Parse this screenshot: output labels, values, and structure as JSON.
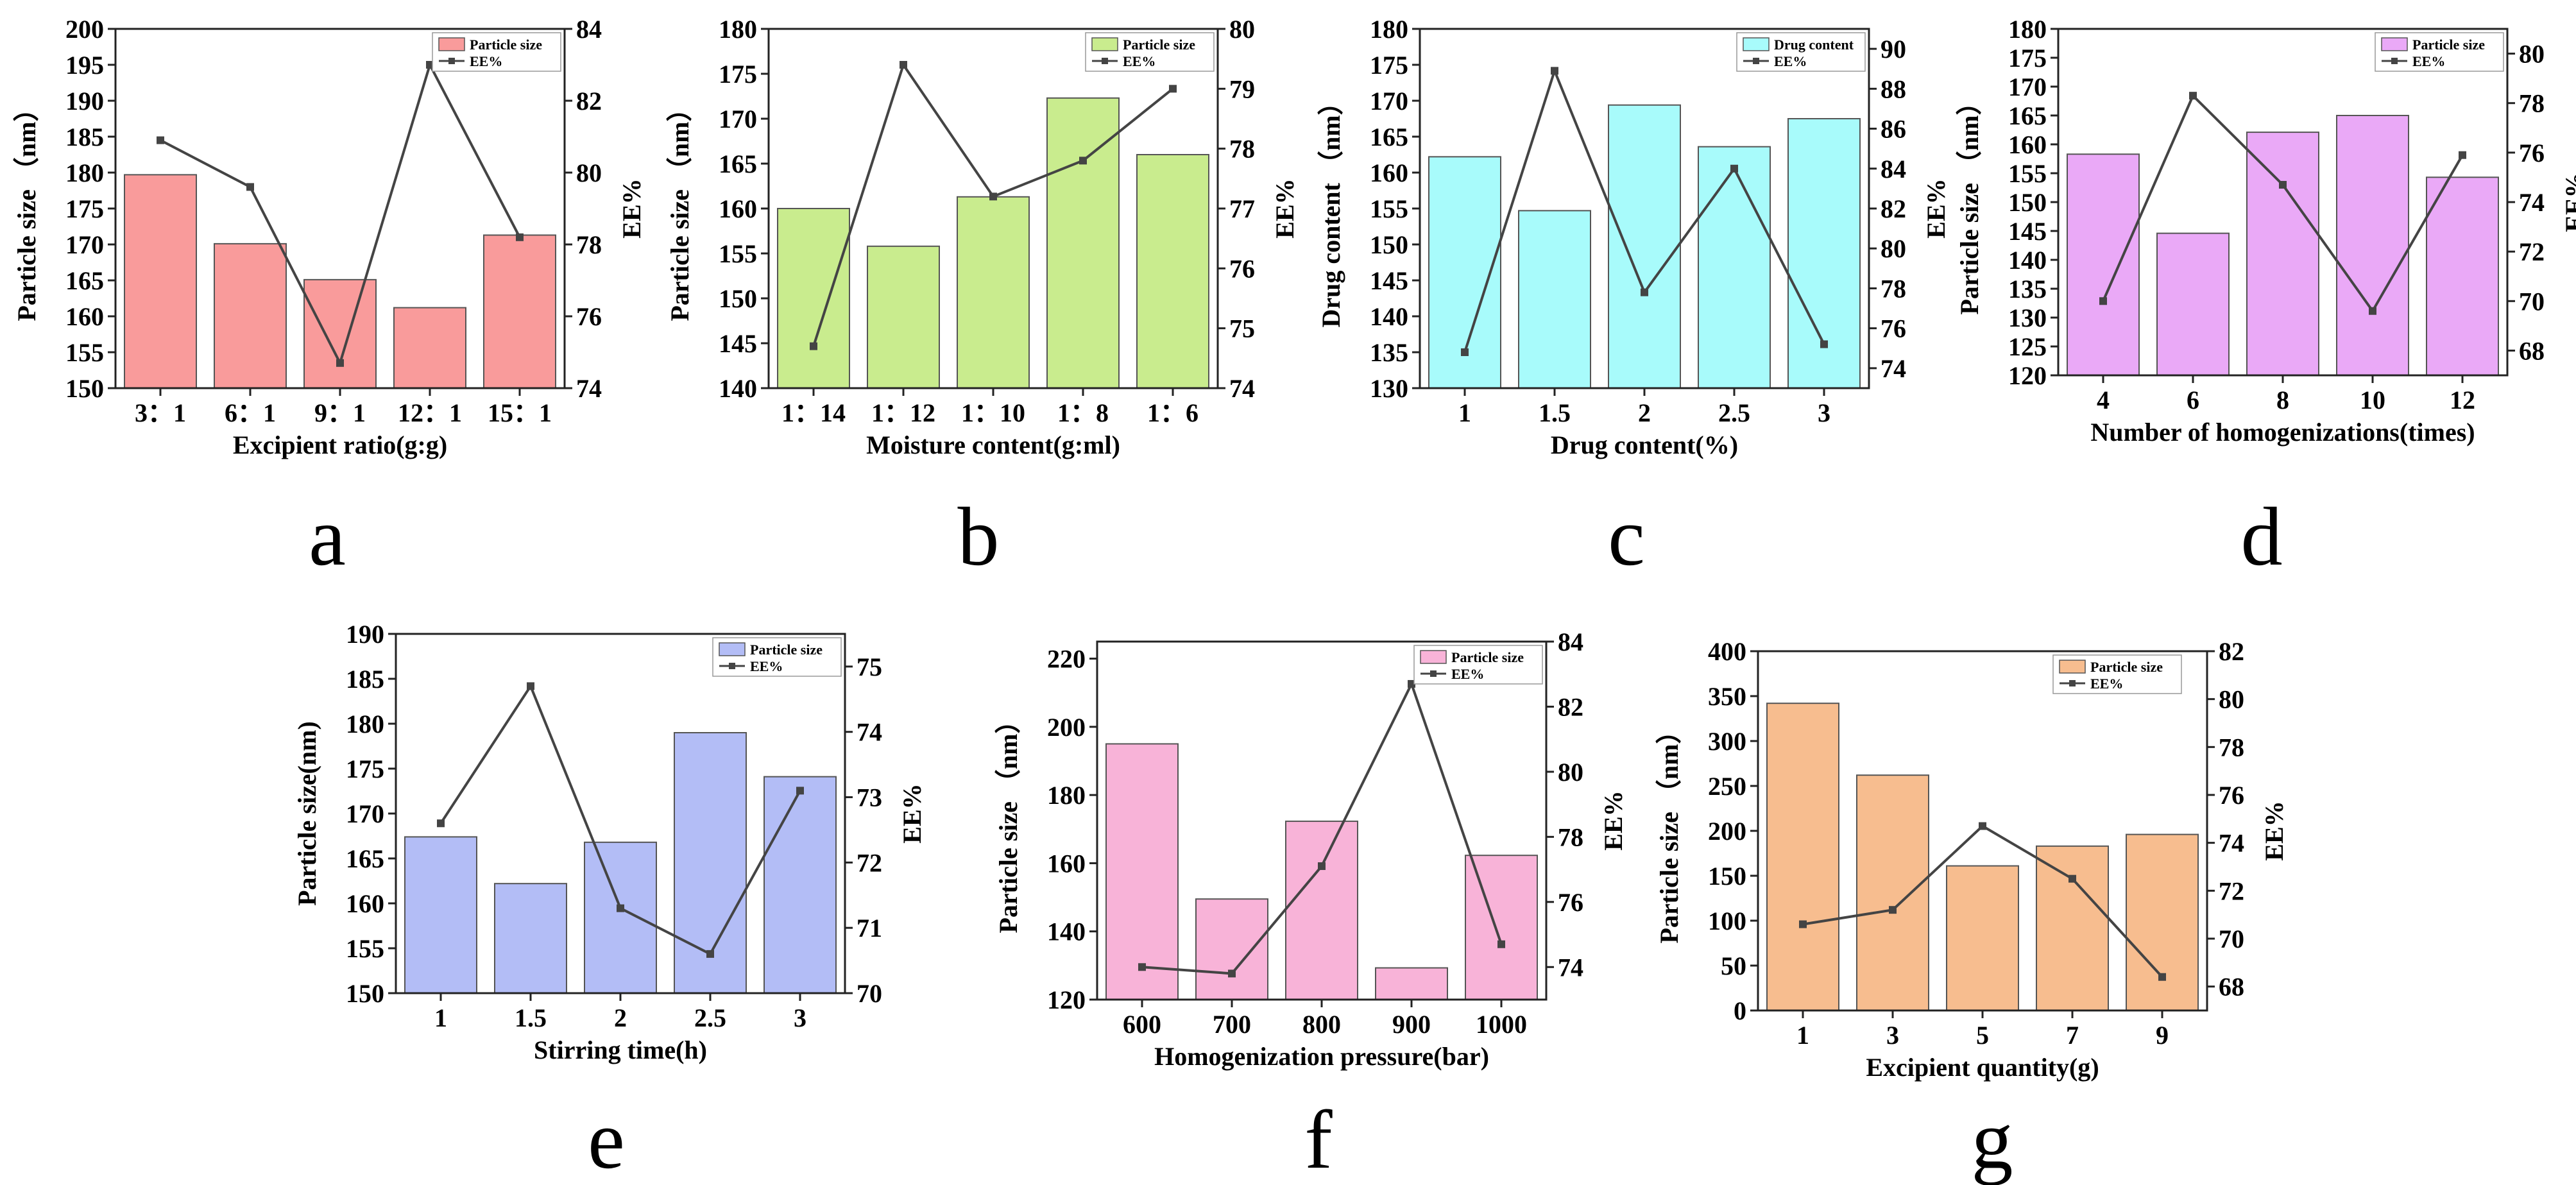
{
  "chart_data": [
    {
      "type": "bar",
      "panel": "a",
      "categories": [
        "3：1",
        "6：1",
        "9：1",
        "12：1",
        "15：1"
      ],
      "series": [
        {
          "name": "Particle size",
          "axis": "left",
          "values": [
            179.7,
            170.1,
            165.1,
            161.2,
            171.3
          ]
        },
        {
          "name": "EE%",
          "axis": "right",
          "type": "line",
          "values": [
            80.9,
            79.6,
            74.7,
            83.0,
            78.2
          ]
        }
      ],
      "xlabel": "Excipient ratio(g:g)",
      "ylabel": "Particle size （nm）",
      "y2label": "EE%",
      "ylim": [
        150,
        200
      ],
      "yticks": [
        150,
        155,
        160,
        165,
        170,
        175,
        180,
        185,
        190,
        195,
        200
      ],
      "y2lim": [
        74,
        84
      ],
      "y2ticks": [
        74,
        76,
        78,
        80,
        82,
        84
      ],
      "bar_color": "#f99b9b",
      "legend": "top-right"
    },
    {
      "type": "bar",
      "panel": "b",
      "categories": [
        "1：14",
        "1：12",
        "1：10",
        "1：8",
        "1：6"
      ],
      "series": [
        {
          "name": "Particle size",
          "axis": "left",
          "values": [
            160.0,
            155.8,
            161.3,
            172.3,
            166.0
          ]
        },
        {
          "name": "EE%",
          "axis": "right",
          "type": "line",
          "values": [
            74.7,
            79.4,
            77.2,
            77.8,
            79.0
          ]
        }
      ],
      "xlabel": "Moisture content(g:ml)",
      "ylabel": "Particle size （nm）",
      "y2label": "EE%",
      "ylim": [
        140,
        180
      ],
      "yticks": [
        140,
        145,
        150,
        155,
        160,
        165,
        170,
        175,
        180
      ],
      "y2lim": [
        74,
        80
      ],
      "y2ticks": [
        74,
        75,
        76,
        77,
        78,
        79,
        80
      ],
      "bar_color": "#c9ec8e",
      "legend": "top-right"
    },
    {
      "type": "bar",
      "panel": "c",
      "categories": [
        "1",
        "1.5",
        "2",
        "2.5",
        "3"
      ],
      "series": [
        {
          "name": "Drug content",
          "axis": "left",
          "values": [
            162.2,
            154.7,
            169.4,
            163.6,
            167.5
          ]
        },
        {
          "name": "EE%",
          "axis": "right",
          "type": "line",
          "values": [
            74.8,
            88.9,
            77.8,
            84.0,
            75.2
          ]
        }
      ],
      "xlabel": "Drug content(%)",
      "ylabel": "Drug content （nm）",
      "y2label": "EE%",
      "ylim": [
        130,
        180
      ],
      "yticks": [
        130,
        135,
        140,
        145,
        150,
        155,
        160,
        165,
        170,
        175,
        180
      ],
      "y2lim": [
        73,
        91
      ],
      "y2ticks": [
        74,
        76,
        78,
        80,
        82,
        84,
        86,
        88,
        90
      ],
      "bar_color": "#a8fbfb",
      "legend": "top-right"
    },
    {
      "type": "bar",
      "panel": "d",
      "categories": [
        "4",
        "6",
        "8",
        "10",
        "12"
      ],
      "series": [
        {
          "name": "Particle size",
          "axis": "left",
          "values": [
            158.3,
            144.6,
            162.1,
            165.0,
            154.3
          ]
        },
        {
          "name": "EE%",
          "axis": "right",
          "type": "line",
          "values": [
            70.0,
            78.3,
            74.7,
            69.6,
            75.9
          ]
        }
      ],
      "xlabel": "Number of homogenizations(times)",
      "ylabel": "Particle size （nm）",
      "y2label": "EE%",
      "ylim": [
        120,
        180
      ],
      "yticks": [
        120,
        125,
        130,
        135,
        140,
        145,
        150,
        155,
        160,
        165,
        170,
        175,
        180
      ],
      "y2lim": [
        67,
        81
      ],
      "y2ticks": [
        68,
        70,
        72,
        74,
        76,
        78,
        80
      ],
      "bar_color": "#eaa9f7",
      "legend": "top-right"
    },
    {
      "type": "bar",
      "panel": "e",
      "categories": [
        "1",
        "1.5",
        "2",
        "2.5",
        "3"
      ],
      "series": [
        {
          "name": "Particle size",
          "axis": "left",
          "values": [
            167.4,
            162.2,
            166.8,
            179.0,
            174.1
          ]
        },
        {
          "name": "EE%",
          "axis": "right",
          "type": "line",
          "values": [
            72.6,
            74.7,
            71.3,
            70.6,
            73.1
          ]
        }
      ],
      "xlabel": "Stirring time(h)",
      "ylabel": "Particle size(nm)",
      "y2label": "EE%",
      "ylim": [
        150,
        190
      ],
      "yticks": [
        150,
        155,
        160,
        165,
        170,
        175,
        180,
        185,
        190
      ],
      "y2lim": [
        70,
        75.5
      ],
      "y2ticks": [
        70,
        71,
        72,
        73,
        74,
        75
      ],
      "bar_color": "#b3bdf6",
      "legend": "top-right"
    },
    {
      "type": "bar",
      "panel": "f",
      "categories": [
        "600",
        "700",
        "800",
        "900",
        "1000"
      ],
      "series": [
        {
          "name": "Particle size",
          "axis": "left",
          "values": [
            195.0,
            149.5,
            172.3,
            129.3,
            162.3
          ]
        },
        {
          "name": "EE%",
          "axis": "right",
          "type": "line",
          "values": [
            74.0,
            73.8,
            77.1,
            82.7,
            74.7
          ]
        }
      ],
      "xlabel": "Homogenization pressure(bar)",
      "ylabel": "Particle size （nm）",
      "y2label": "EE%",
      "ylim": [
        120,
        225
      ],
      "yticks": [
        120,
        140,
        160,
        180,
        200,
        220
      ],
      "y2lim": [
        73,
        84
      ],
      "y2ticks": [
        74,
        76,
        78,
        80,
        82,
        84
      ],
      "bar_color": "#f8b3d8",
      "legend": "top-right"
    },
    {
      "type": "bar",
      "panel": "g",
      "categories": [
        "1",
        "3",
        "5",
        "7",
        "9"
      ],
      "series": [
        {
          "name": "Particle size",
          "axis": "left",
          "values": [
            342,
            262,
            161,
            183,
            196
          ]
        },
        {
          "name": "EE%",
          "axis": "right",
          "type": "line",
          "values": [
            70.6,
            71.2,
            74.7,
            72.5,
            68.4
          ]
        }
      ],
      "xlabel": "Excipient quantity(g)",
      "ylabel": "Particle size （nm）",
      "y2label": "EE%",
      "ylim": [
        0,
        400
      ],
      "yticks": [
        0,
        50,
        100,
        150,
        200,
        250,
        300,
        350,
        400
      ],
      "y2lim": [
        67,
        82
      ],
      "y2ticks": [
        68,
        70,
        72,
        74,
        76,
        78,
        80,
        82
      ],
      "bar_color": "#f7bd8f",
      "legend": "top-left"
    }
  ]
}
